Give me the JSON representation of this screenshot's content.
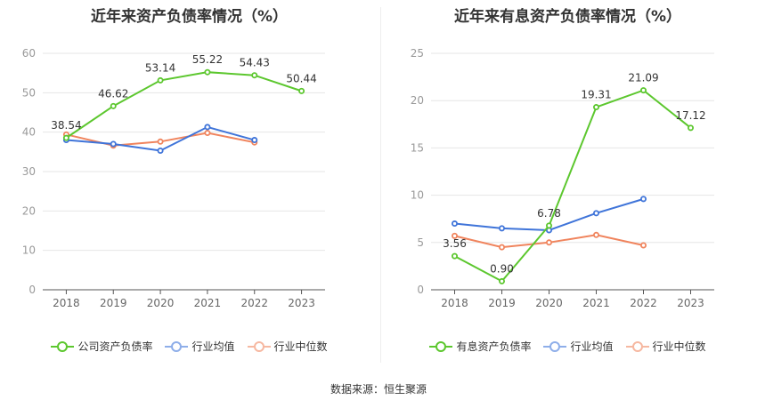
{
  "source": "数据来源：恒生聚源",
  "chart_data": [
    {
      "type": "line",
      "title": "近年来资产负债率情况（%）",
      "x": [
        "2018",
        "2019",
        "2020",
        "2021",
        "2022",
        "2023"
      ],
      "ylim": [
        0,
        60
      ],
      "yticks": [
        0,
        10,
        20,
        30,
        40,
        50,
        60
      ],
      "grid": true,
      "legend_position": "bottom",
      "series": [
        {
          "name": "公司资产负债率",
          "color": "#5cc72e",
          "values": [
            38.54,
            46.62,
            53.14,
            55.22,
            54.43,
            50.44
          ],
          "labels": [
            "38.54",
            "46.62",
            "53.14",
            "55.22",
            "54.43",
            "50.44"
          ]
        },
        {
          "name": "行业均值",
          "color": "#3f74d9",
          "values": [
            38.0,
            37.0,
            35.3,
            41.3,
            38.0,
            null
          ]
        },
        {
          "name": "行业中位数",
          "color": "#f0845d",
          "values": [
            39.4,
            36.6,
            37.6,
            39.8,
            37.4,
            null
          ]
        }
      ]
    },
    {
      "type": "line",
      "title": "近年来有息资产负债率情况（%）",
      "x": [
        "2018",
        "2019",
        "2020",
        "2021",
        "2022",
        "2023"
      ],
      "ylim": [
        0,
        25
      ],
      "yticks": [
        0,
        5,
        10,
        15,
        20,
        25
      ],
      "grid": true,
      "legend_position": "bottom",
      "series": [
        {
          "name": "有息资产负债率",
          "color": "#5cc72e",
          "values": [
            3.56,
            0.9,
            6.78,
            19.31,
            21.09,
            17.12
          ],
          "labels": [
            "3.56",
            "0.90",
            "6.78",
            "19.31",
            "21.09",
            "17.12"
          ]
        },
        {
          "name": "行业均值",
          "color": "#3f74d9",
          "values": [
            7.0,
            6.5,
            6.3,
            8.1,
            9.6,
            null
          ]
        },
        {
          "name": "行业中位数",
          "color": "#f0845d",
          "values": [
            5.7,
            4.5,
            5.0,
            5.8,
            4.7,
            null
          ]
        }
      ]
    }
  ]
}
